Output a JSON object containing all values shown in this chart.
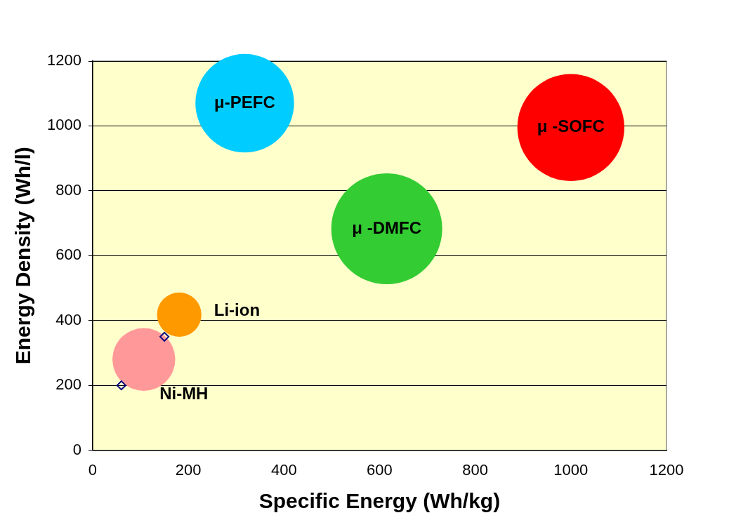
{
  "chart_data": {
    "type": "bubble",
    "xlabel": "Specific Energy (Wh/kg)",
    "ylabel": "Energy Density (Wh/l)",
    "xlim": [
      0,
      1200
    ],
    "xticks": [
      0,
      200,
      400,
      600,
      800,
      1000,
      1200
    ],
    "ylim": [
      0,
      1200
    ],
    "yticks": [
      0,
      200,
      400,
      600,
      800,
      1000,
      1200
    ],
    "grid": "y",
    "legend": false,
    "series": [
      {
        "name": "μ-PEFC",
        "color": "#00ccff",
        "x": [
          318
        ],
        "values": [
          1070
        ],
        "sizes": [
          0.79
        ]
      },
      {
        "name": "μ -SOFC",
        "color": "#ff0000",
        "x": [
          1000
        ],
        "values": [
          995
        ],
        "sizes": [
          0.93
        ]
      },
      {
        "name": "μ -DMFC",
        "color": "#33cc33",
        "x": [
          615
        ],
        "values": [
          683
        ],
        "sizes": [
          1
        ]
      },
      {
        "name": "Li-ion",
        "color": "#ff9900",
        "x": [
          181
        ],
        "values": [
          418
        ],
        "sizes": [
          0.16
        ]
      },
      {
        "name": "Ni-MH",
        "color": "#ff9999",
        "x": [
          107
        ],
        "values": [
          280
        ],
        "sizes": [
          0.32
        ]
      },
      {
        "type": "scatter",
        "marker": "diamond",
        "color": "#000080",
        "x": [
          60,
          150
        ],
        "values": [
          200,
          350
        ]
      }
    ]
  }
}
